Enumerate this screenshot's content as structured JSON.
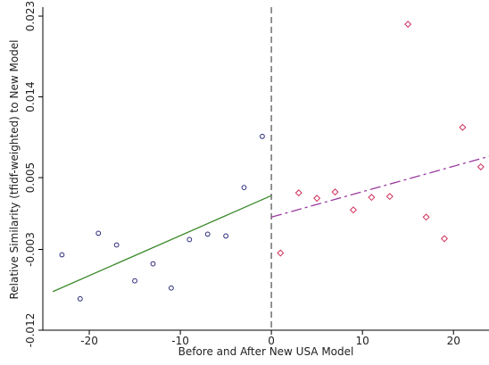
{
  "chart_data": {
    "type": "scatter",
    "x_label": "Before and After New USA Model",
    "y_label": "Relative Similarity (tfidf-weighted) to New Model",
    "xlim": [
      -25.1,
      23.9
    ],
    "ylim": [
      -0.012,
      0.024
    ],
    "xticks": [
      -20,
      -10,
      0,
      10,
      20
    ],
    "yticks": [
      -0.012,
      -0.003,
      0.005,
      0.014,
      0.023
    ],
    "vline": 0,
    "vline_color": "#888888",
    "series": [
      {
        "marker": "circle",
        "color": "#2a2a7a",
        "x": [
          -23,
          -21,
          -19,
          -17,
          -15,
          -13,
          -11,
          -9,
          -7,
          -5,
          -3,
          -1
        ],
        "values": [
          -0.0036,
          -0.0085,
          -0.0012,
          -0.0025,
          -0.0065,
          -0.0046,
          -0.0073,
          -0.0019,
          -0.0013,
          -0.0015,
          0.0039,
          0.0096
        ]
      },
      {
        "marker": "diamond",
        "color": "#d0305a",
        "x": [
          1,
          3,
          5,
          7,
          9,
          11,
          13,
          15,
          17,
          19,
          21,
          23
        ],
        "values": [
          -0.0034,
          0.0033,
          0.0027,
          0.0034,
          0.0014,
          0.0028,
          0.0029,
          0.0221,
          0.0006,
          -0.0018,
          0.0106,
          0.0062
        ]
      },
      {
        "marker": "line",
        "color": "#3a8a2a",
        "dash": "none",
        "x": [
          -24,
          0
        ],
        "values": [
          -0.0077,
          0.003
        ]
      },
      {
        "marker": "line",
        "color": "#9a3aa0",
        "dash": "12 4 3 4",
        "x": [
          0,
          24
        ],
        "values": [
          0.0006,
          0.0074
        ]
      }
    ]
  }
}
